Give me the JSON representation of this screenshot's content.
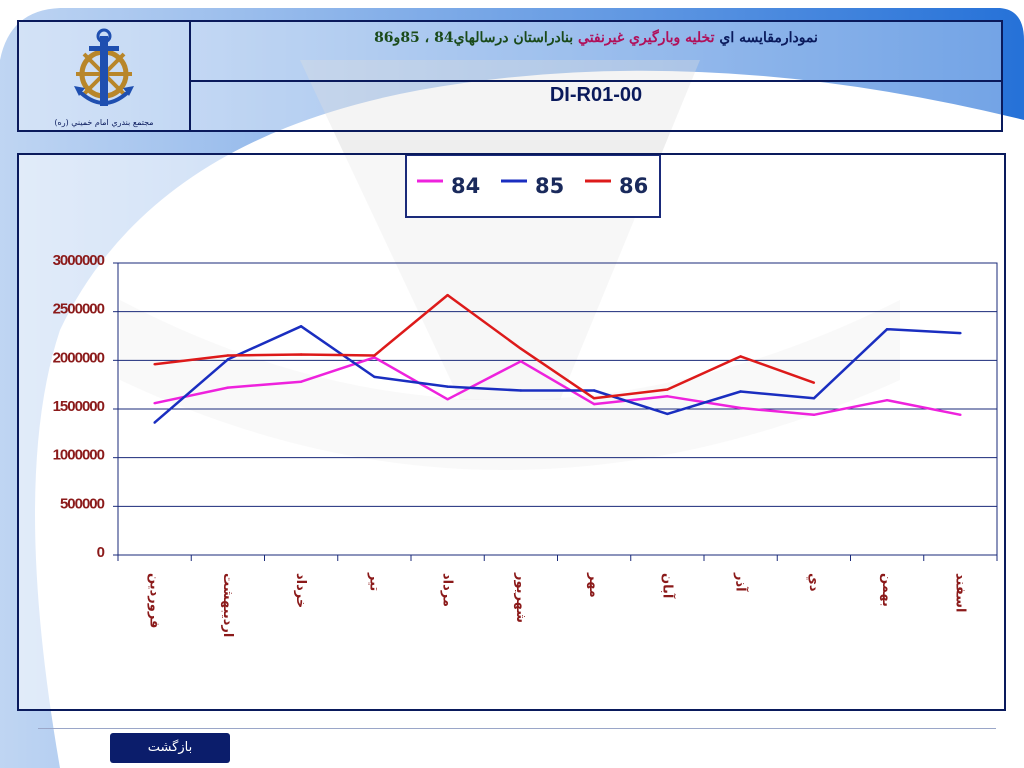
{
  "header": {
    "title_part1": "نمودارمقايسه اي",
    "title_part2": "تخليه وبارگيري غيرنفتي",
    "title_part3": "بنادراستان درسالهاي84 ، 85و86",
    "document_code": "DI-R01-00",
    "organization": "مجتمع بندري امام خميني (ره)"
  },
  "footer": {
    "back_label": "بازگشت"
  },
  "colors": {
    "frame": "#0a1a5c",
    "series_84": "#ee22dd",
    "series_85": "#1a2ec0",
    "series_86": "#dd1a1a",
    "axis_label": "#8b1a1a"
  },
  "chart_data": {
    "type": "line",
    "categories": [
      "فروردين",
      "ارديبهشت",
      "خرداد",
      "تير",
      "مرداد",
      "شهريور",
      "مهر",
      "آبان",
      "آذر",
      "دي",
      "بهمن",
      "اسفند"
    ],
    "series": [
      {
        "name": "84",
        "values": [
          1560000,
          1720000,
          1780000,
          2030000,
          1600000,
          1990000,
          1550000,
          1630000,
          1510000,
          1440000,
          1590000,
          1440000
        ]
      },
      {
        "name": "85",
        "values": [
          1360000,
          2010000,
          2350000,
          1830000,
          1730000,
          1690000,
          1690000,
          1450000,
          1680000,
          1610000,
          2320000,
          2280000
        ]
      },
      {
        "name": "86",
        "values": [
          1960000,
          2050000,
          2060000,
          2050000,
          2670000,
          2120000,
          1610000,
          1700000,
          2040000,
          1770000,
          null,
          null
        ]
      }
    ],
    "y_ticks": [
      "0",
      "500000",
      "1000000",
      "1500000",
      "2000000",
      "2500000",
      "3000000"
    ],
    "ylim": [
      0,
      3000000
    ],
    "grid": true,
    "legend_position": "top-center"
  }
}
